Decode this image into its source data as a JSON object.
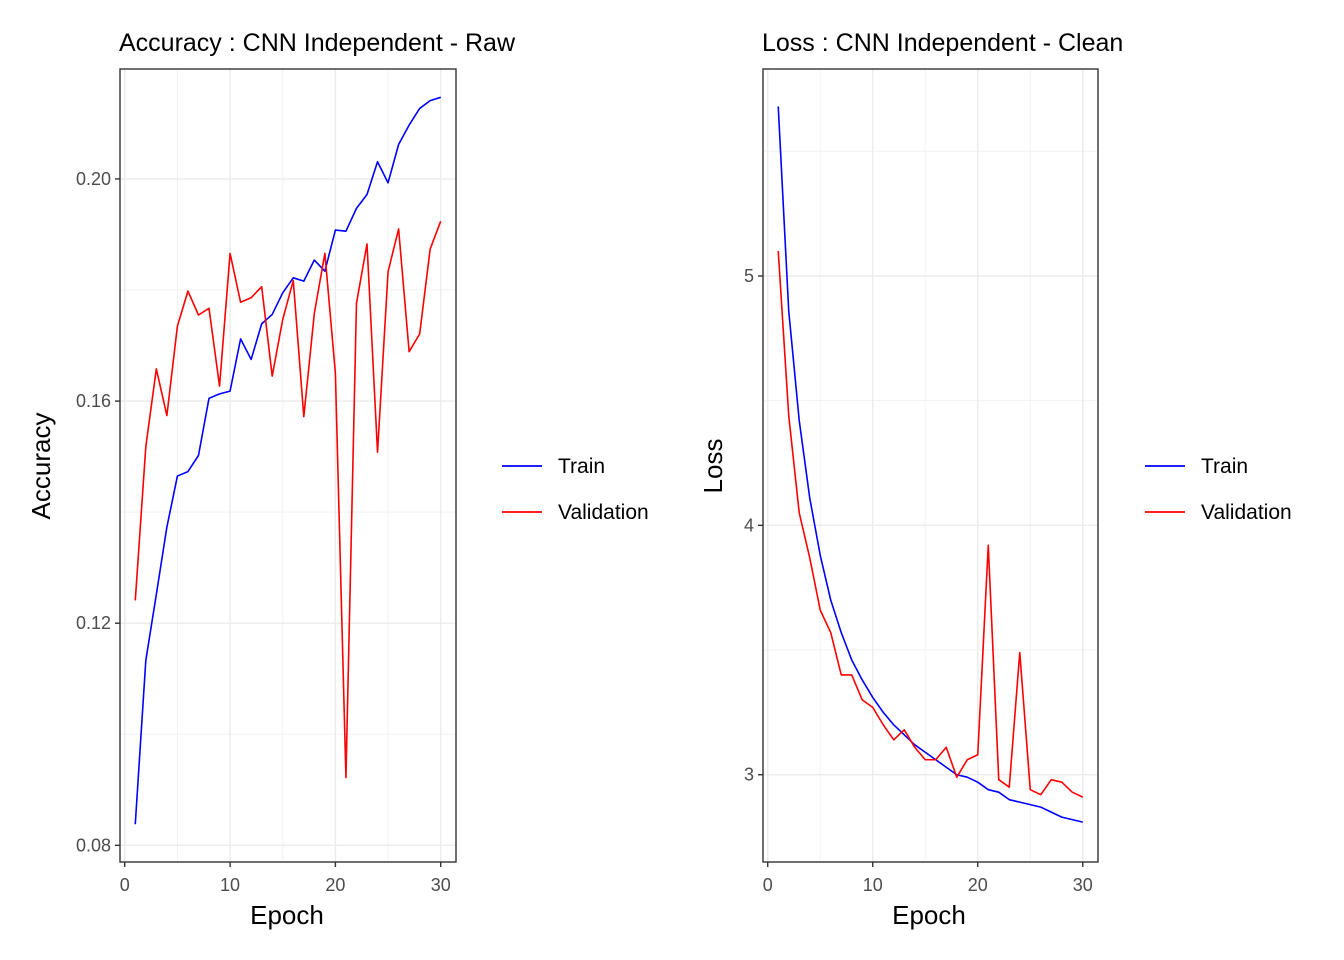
{
  "chart_data": [
    {
      "type": "line",
      "title": "Accuracy : CNN Independent - Raw",
      "xlabel": "Epoch",
      "ylabel": "Accuracy",
      "xlim": [
        -0.45,
        31.45
      ],
      "ylim": [
        0.077,
        0.2198
      ],
      "x_ticks": [
        0,
        10,
        20,
        30
      ],
      "x_tick_labels": [
        "0",
        "10",
        "20",
        "30"
      ],
      "y_ticks": [
        0.08,
        0.12,
        0.16,
        0.2
      ],
      "y_tick_labels": [
        "0.08",
        "0.12",
        "0.16",
        "0.20"
      ],
      "x_minor": [
        5,
        15,
        25
      ],
      "y_minor": [
        0.1,
        0.14,
        0.18
      ],
      "grid": true,
      "legend_position": "right",
      "x": [
        1,
        2,
        3,
        4,
        5,
        6,
        7,
        8,
        9,
        10,
        11,
        12,
        13,
        14,
        15,
        16,
        17,
        18,
        19,
        20,
        21,
        22,
        23,
        24,
        25,
        26,
        27,
        28,
        29,
        30
      ],
      "series": [
        {
          "name": "Train",
          "color": "#0000ff",
          "values": [
            0.0838,
            0.1133,
            0.1252,
            0.1373,
            0.1465,
            0.1473,
            0.1502,
            0.1605,
            0.1613,
            0.1618,
            0.1712,
            0.1675,
            0.1739,
            0.1756,
            0.1795,
            0.1822,
            0.1816,
            0.1854,
            0.1834,
            0.1908,
            0.1906,
            0.1947,
            0.1972,
            0.2031,
            0.1993,
            0.2062,
            0.2097,
            0.2127,
            0.2141,
            0.2147
          ]
        },
        {
          "name": "Validation",
          "color": "#ff0000",
          "values": [
            0.1241,
            0.1518,
            0.1658,
            0.1574,
            0.1735,
            0.1798,
            0.1755,
            0.1767,
            0.1627,
            0.1866,
            0.1778,
            0.1786,
            0.1806,
            0.1645,
            0.1747,
            0.1817,
            0.1572,
            0.1758,
            0.1866,
            0.165,
            0.0922,
            0.1776,
            0.1883,
            0.1508,
            0.1833,
            0.191,
            0.1689,
            0.1721,
            0.1874,
            0.1924
          ]
        }
      ]
    },
    {
      "type": "line",
      "title": "Loss : CNN Independent - Clean",
      "xlabel": "Epoch",
      "ylabel": "Loss",
      "xlim": [
        -0.45,
        31.45
      ],
      "ylim": [
        2.65,
        5.83
      ],
      "x_ticks": [
        0,
        10,
        20,
        30
      ],
      "x_tick_labels": [
        "0",
        "10",
        "20",
        "30"
      ],
      "y_ticks": [
        3,
        4,
        5
      ],
      "y_tick_labels": [
        "3",
        "4",
        "5"
      ],
      "x_minor": [
        5,
        15,
        25
      ],
      "y_minor": [
        3.5,
        4.5,
        5.5
      ],
      "grid": true,
      "legend_position": "right",
      "x": [
        1,
        2,
        3,
        4,
        5,
        6,
        7,
        8,
        9,
        10,
        11,
        12,
        13,
        14,
        15,
        16,
        17,
        18,
        19,
        20,
        21,
        22,
        23,
        24,
        25,
        26,
        27,
        28,
        29,
        30
      ],
      "series": [
        {
          "name": "Train",
          "color": "#0000ff",
          "values": [
            5.68,
            4.86,
            4.42,
            4.11,
            3.88,
            3.7,
            3.57,
            3.46,
            3.38,
            3.31,
            3.25,
            3.2,
            3.16,
            3.12,
            3.09,
            3.06,
            3.03,
            3.0,
            2.99,
            2.97,
            2.94,
            2.93,
            2.9,
            2.89,
            2.88,
            2.87,
            2.85,
            2.83,
            2.82,
            2.81
          ]
        },
        {
          "name": "Validation",
          "color": "#ff0000",
          "values": [
            5.1,
            4.44,
            4.05,
            3.87,
            3.66,
            3.57,
            3.4,
            3.4,
            3.3,
            3.27,
            3.2,
            3.14,
            3.18,
            3.11,
            3.06,
            3.06,
            3.11,
            2.99,
            3.06,
            3.08,
            3.92,
            2.98,
            2.95,
            3.49,
            2.94,
            2.92,
            2.98,
            2.97,
            2.93,
            2.91
          ]
        }
      ]
    }
  ]
}
